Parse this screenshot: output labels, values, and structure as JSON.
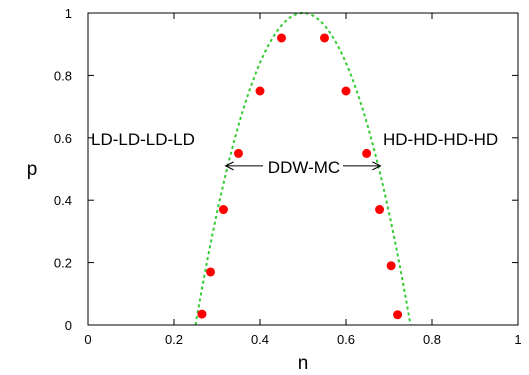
{
  "chart_data": {
    "type": "scatter",
    "xlabel": "n",
    "ylabel": "p",
    "xlim": [
      0,
      1
    ],
    "ylim": [
      0,
      1
    ],
    "x_ticks": [
      "0",
      "0.2",
      "0.4",
      "0.6",
      "0.8",
      "1"
    ],
    "y_ticks": [
      "0",
      "0.2",
      "0.4",
      "0.6",
      "0.8",
      "1"
    ],
    "grid": false,
    "series": [
      {
        "marker": "filled-circle",
        "color": "#ff0000",
        "points": [
          {
            "x": 0.265,
            "y": 0.035
          },
          {
            "x": 0.285,
            "y": 0.17
          },
          {
            "x": 0.315,
            "y": 0.37
          },
          {
            "x": 0.35,
            "y": 0.55
          },
          {
            "x": 0.4,
            "y": 0.75
          },
          {
            "x": 0.45,
            "y": 0.92
          },
          {
            "x": 0.55,
            "y": 0.92
          },
          {
            "x": 0.6,
            "y": 0.75
          },
          {
            "x": 0.648,
            "y": 0.55
          },
          {
            "x": 0.678,
            "y": 0.37
          },
          {
            "x": 0.705,
            "y": 0.19
          },
          {
            "x": 0.72,
            "y": 0.033
          }
        ]
      },
      {
        "kind": "curve",
        "style": "dotted",
        "color": "#33cc33",
        "function": "1 - 16*(n-0.5)^2",
        "domain": [
          0.25,
          0.75
        ]
      }
    ],
    "annotations": {
      "left_region": "LD-LD-LD-LD",
      "right_region": "HD-HD-HD-HD",
      "center_region": "DDW-MC",
      "center_arrow_y": 0.51,
      "center_arrow_x_from": 0.32,
      "center_arrow_x_to": 0.68
    }
  }
}
